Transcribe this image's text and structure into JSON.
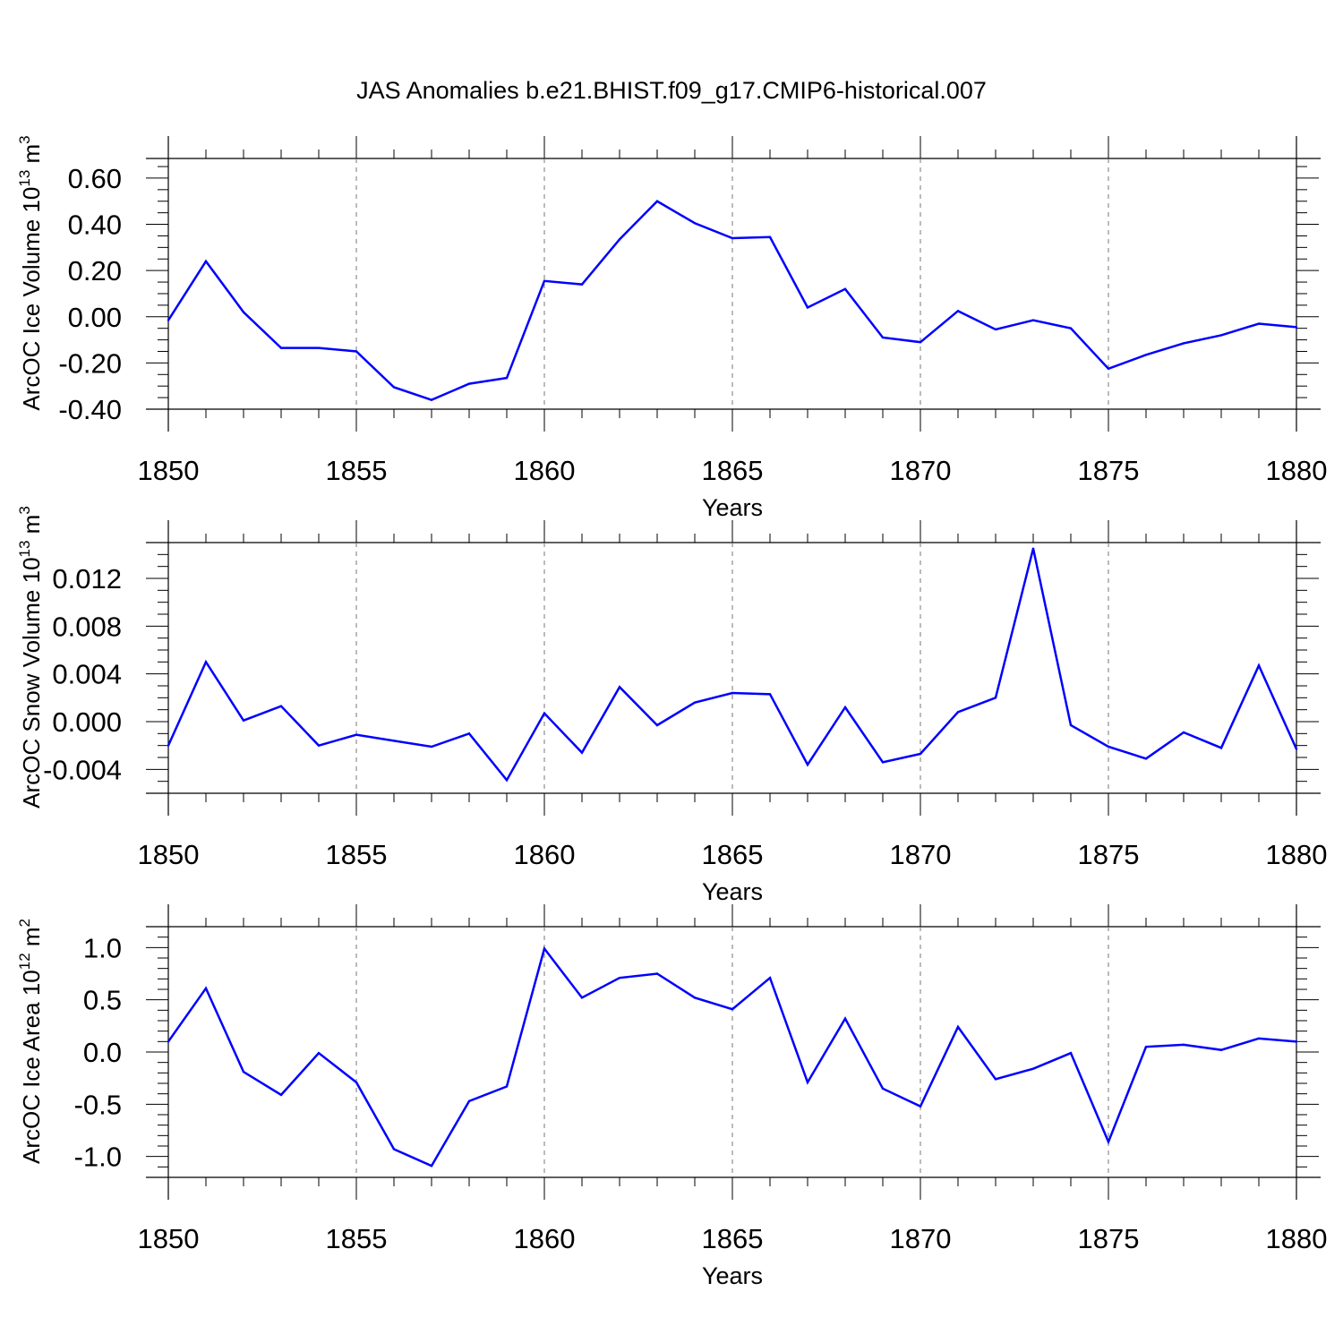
{
  "title": "JAS Anomalies b.e21.BHIST.f09_g17.CMIP6-historical.007",
  "line_color": "#0000ff",
  "chart_data": [
    {
      "type": "line",
      "ylabel_main": "ArcOC Ice Volume 10",
      "ylabel_sup": "13",
      "ylabel_unit": " m",
      "ylabel_unit_sup": "3",
      "xlabel": "Years",
      "xlim": [
        1850,
        1880
      ],
      "ylim": [
        -0.4,
        0.685
      ],
      "xticks": [
        "1850",
        "1855",
        "1860",
        "1865",
        "1870",
        "1875",
        "1880"
      ],
      "yticks": [
        "0.60",
        "0.40",
        "0.20",
        "0.00",
        "-0.20",
        "-0.40"
      ],
      "ytick_values": [
        0.6,
        0.4,
        0.2,
        0.0,
        -0.2,
        -0.4
      ],
      "minor_step": 0.05,
      "x": [
        1850,
        1851,
        1852,
        1853,
        1854,
        1855,
        1856,
        1857,
        1858,
        1859,
        1860,
        1861,
        1862,
        1863,
        1864,
        1865,
        1866,
        1867,
        1868,
        1869,
        1870,
        1871,
        1872,
        1873,
        1874,
        1875,
        1876,
        1877,
        1878,
        1879,
        1880
      ],
      "values": [
        -0.015,
        0.24,
        0.02,
        -0.135,
        -0.135,
        -0.15,
        -0.305,
        -0.36,
        -0.29,
        -0.265,
        0.155,
        0.14,
        0.335,
        0.5,
        0.405,
        0.34,
        0.345,
        0.04,
        0.12,
        -0.09,
        -0.11,
        0.025,
        -0.055,
        -0.015,
        -0.05,
        -0.225,
        -0.165,
        -0.115,
        -0.08,
        -0.03,
        -0.045
      ]
    },
    {
      "type": "line",
      "ylabel_main": "ArcOC Snow Volume 10",
      "ylabel_sup": "13",
      "ylabel_unit": " m",
      "ylabel_unit_sup": "3",
      "xlabel": "Years",
      "xlim": [
        1850,
        1880
      ],
      "ylim": [
        -0.006,
        0.015
      ],
      "xticks": [
        "1850",
        "1855",
        "1860",
        "1865",
        "1870",
        "1875",
        "1880"
      ],
      "yticks": [
        "0.012",
        "0.008",
        "0.004",
        "0.000",
        "-0.004"
      ],
      "ytick_values": [
        0.012,
        0.008,
        0.004,
        0.0,
        -0.004
      ],
      "minor_step": 0.001,
      "x": [
        1850,
        1851,
        1852,
        1853,
        1854,
        1855,
        1856,
        1857,
        1858,
        1859,
        1860,
        1861,
        1862,
        1863,
        1864,
        1865,
        1866,
        1867,
        1868,
        1869,
        1870,
        1871,
        1872,
        1873,
        1874,
        1875,
        1876,
        1877,
        1878,
        1879,
        1880
      ],
      "values": [
        -0.002,
        0.005,
        0.0001,
        0.0013,
        -0.002,
        -0.0011,
        -0.0016,
        -0.0021,
        -0.001,
        -0.0049,
        0.0007,
        -0.0026,
        0.0029,
        -0.0003,
        0.0016,
        0.0024,
        0.0023,
        -0.0036,
        0.0012,
        -0.0034,
        -0.0027,
        0.0008,
        0.002,
        0.0145,
        -0.0003,
        -0.0021,
        -0.0031,
        -0.0009,
        -0.0022,
        0.0047,
        -0.0023
      ]
    },
    {
      "type": "line",
      "ylabel_main": "ArcOC Ice Area 10",
      "ylabel_sup": "12",
      "ylabel_unit": " m",
      "ylabel_unit_sup": "2",
      "xlabel": "Years",
      "xlim": [
        1850,
        1880
      ],
      "ylim": [
        -1.2,
        1.2
      ],
      "xticks": [
        "1850",
        "1855",
        "1860",
        "1865",
        "1870",
        "1875",
        "1880"
      ],
      "yticks": [
        "1.0",
        "0.5",
        "0.0",
        "-0.5",
        "-1.0"
      ],
      "ytick_values": [
        1.0,
        0.5,
        0.0,
        -0.5,
        -1.0
      ],
      "minor_step": 0.1,
      "x": [
        1850,
        1851,
        1852,
        1853,
        1854,
        1855,
        1856,
        1857,
        1858,
        1859,
        1860,
        1861,
        1862,
        1863,
        1864,
        1865,
        1866,
        1867,
        1868,
        1869,
        1870,
        1871,
        1872,
        1873,
        1874,
        1875,
        1876,
        1877,
        1878,
        1879,
        1880
      ],
      "values": [
        0.1,
        0.61,
        -0.19,
        -0.41,
        -0.01,
        -0.29,
        -0.93,
        -1.09,
        -0.47,
        -0.33,
        0.99,
        0.52,
        0.71,
        0.75,
        0.52,
        0.41,
        0.71,
        -0.29,
        0.32,
        -0.35,
        -0.52,
        0.24,
        -0.26,
        -0.16,
        -0.01,
        -0.86,
        0.05,
        0.07,
        0.02,
        0.13,
        0.1
      ]
    }
  ]
}
